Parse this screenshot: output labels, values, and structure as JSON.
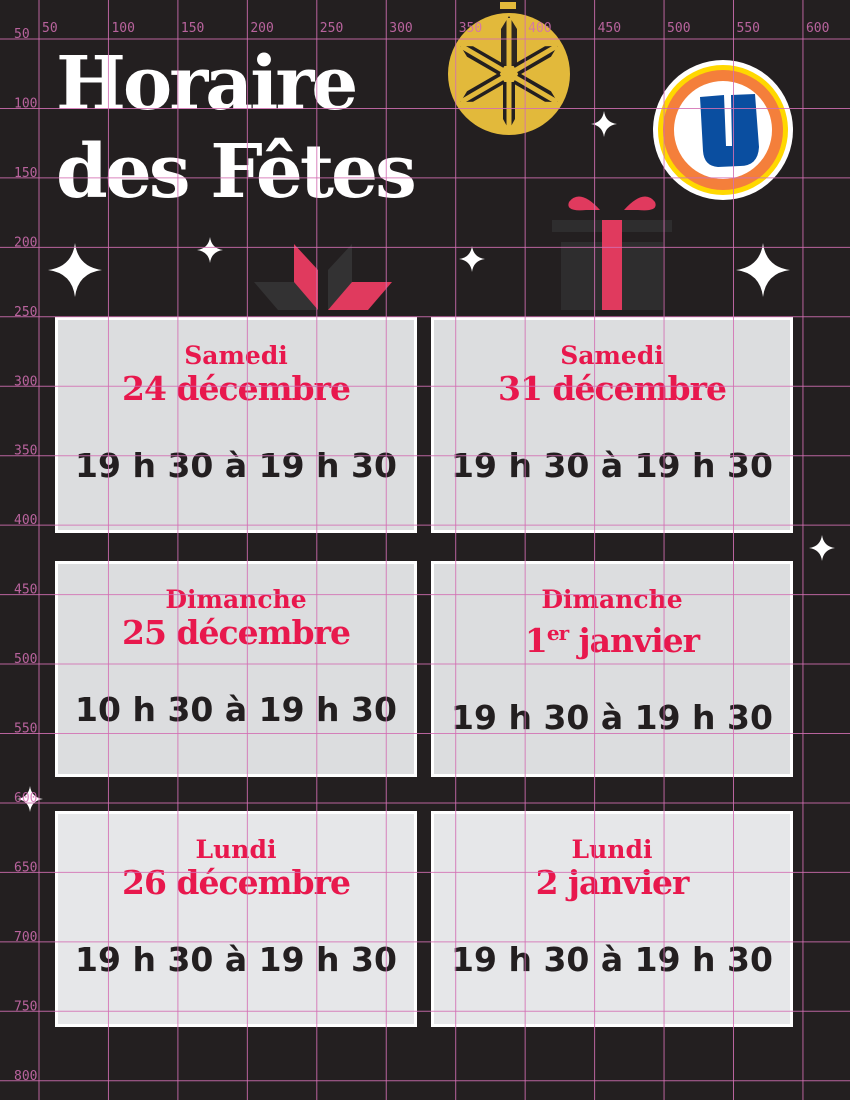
{
  "header": {
    "title_line1": "Horaire",
    "title_line2": "des Fêtes"
  },
  "logo": {
    "letter": "U",
    "colors": {
      "blue": "#0a4ea0",
      "orange": "#f47f3b",
      "yellow": "#ffd800"
    }
  },
  "colors": {
    "accent": "#e8184d",
    "gold": "#e2b93b",
    "background": "#231f20",
    "grid": "#d36fb3"
  },
  "schedule": [
    {
      "day": "Samedi",
      "date": "24 décembre",
      "date_sup": "",
      "date_rest": "",
      "hours": "19 h 30 à 19 h 30"
    },
    {
      "day": "Samedi",
      "date": "31 décembre",
      "date_sup": "",
      "date_rest": "",
      "hours": "19 h 30 à 19 h 30"
    },
    {
      "day": "Dimanche",
      "date": "25 décembre",
      "date_sup": "",
      "date_rest": "",
      "hours": "10 h 30 à 19 h 30"
    },
    {
      "day": "Dimanche",
      "date": "1",
      "date_sup": "er",
      "date_rest": " janvier",
      "hours": "19 h 30 à 19 h 30"
    },
    {
      "day": "Lundi",
      "date": "26 décembre",
      "date_sup": "",
      "date_rest": "",
      "hours": "19 h 30 à 19 h 30"
    },
    {
      "day": "Lundi",
      "date": "2 janvier",
      "date_sup": "",
      "date_rest": "",
      "hours": "19 h 30 à 19 h 30"
    }
  ],
  "grid": {
    "x_labels": [
      "50",
      "100",
      "150",
      "200",
      "250",
      "300",
      "350",
      "400",
      "450",
      "500",
      "550",
      "600"
    ],
    "y_labels": [
      "50",
      "100",
      "150",
      "200",
      "250",
      "300",
      "350",
      "400",
      "450",
      "500",
      "550",
      "600",
      "650",
      "700",
      "750",
      "800"
    ]
  }
}
